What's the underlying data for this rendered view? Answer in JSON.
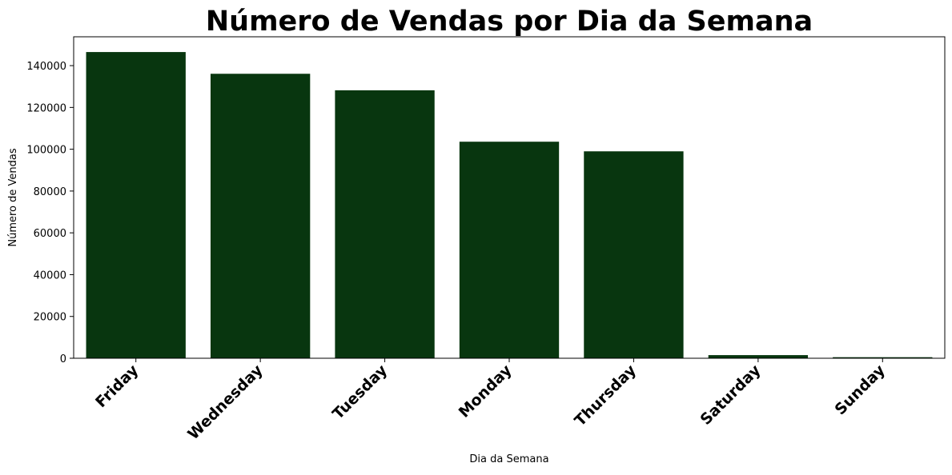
{
  "chart_data": {
    "type": "bar",
    "title": "Número de Vendas por Dia da Semana",
    "xlabel": "Dia da Semana",
    "ylabel": "Número de Vendas",
    "categories": [
      "Friday",
      "Wednesday",
      "Tuesday",
      "Monday",
      "Thursday",
      "Saturday",
      "Sunday"
    ],
    "values": [
      146500,
      136100,
      128200,
      103600,
      99000,
      1500,
      500
    ],
    "ylim": [
      0,
      153800
    ],
    "yticks": [
      0,
      20000,
      40000,
      60000,
      80000,
      100000,
      120000,
      140000
    ],
    "ytick_labels": [
      "0",
      "20000",
      "40000",
      "60000",
      "80000",
      "100000",
      "120000",
      "140000"
    ],
    "bar_color": "#08360f",
    "grid": false,
    "legend": "none"
  }
}
